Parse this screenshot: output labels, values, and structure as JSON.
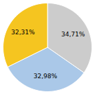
{
  "chart_data": {
    "type": "pie",
    "values": [
      34.71,
      32.98,
      32.31
    ],
    "value_labels": [
      "34,71%",
      "32,98%",
      "32,31%"
    ],
    "colors": [
      "#cccccc",
      "#aac8e8",
      "#f5c520"
    ],
    "data_labels": true
  }
}
